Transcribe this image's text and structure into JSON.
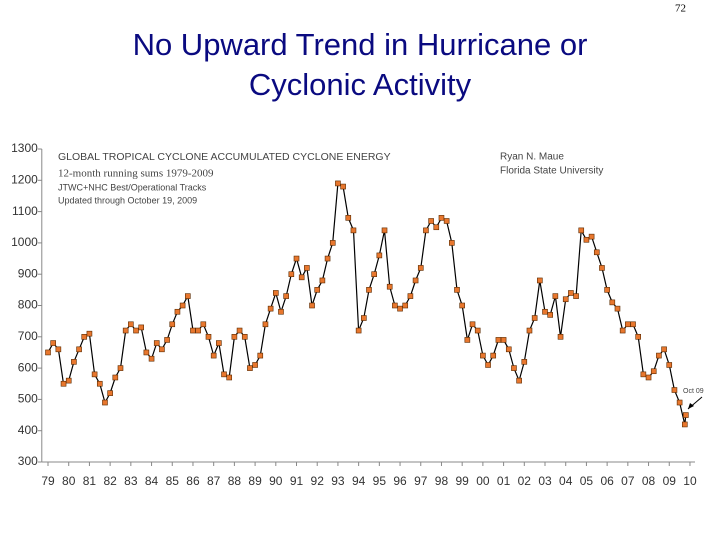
{
  "page_number": "72",
  "slide_title_lines": [
    "No Upward Trend in Hurricane or",
    "Cyclonic Activity"
  ],
  "chart_data": {
    "type": "line",
    "title": "GLOBAL TROPICAL CYCLONE ACCUMULATED CYCLONE ENERGY",
    "subtitle": "12-month running sums 1979-2009",
    "notes": [
      "JTWC+NHC Best/Operational Tracks",
      "Updated through October 19, 2009"
    ],
    "credits": [
      "Ryan N. Maue",
      "Florida State University"
    ],
    "annotation": "Oct 09",
    "x": [
      1979,
      1979.25,
      1979.5,
      1979.75,
      1980,
      1980.25,
      1980.5,
      1980.75,
      1981,
      1981.25,
      1981.5,
      1981.75,
      1982,
      1982.25,
      1982.5,
      1982.75,
      1983,
      1983.25,
      1983.5,
      1983.75,
      1984,
      1984.25,
      1984.5,
      1984.75,
      1985,
      1985.25,
      1985.5,
      1985.75,
      1986,
      1986.25,
      1986.5,
      1986.75,
      1987,
      1987.25,
      1987.5,
      1987.75,
      1988,
      1988.25,
      1988.5,
      1988.75,
      1989,
      1989.25,
      1989.5,
      1989.75,
      1990,
      1990.25,
      1990.5,
      1990.75,
      1991,
      1991.25,
      1991.5,
      1991.75,
      1992,
      1992.25,
      1992.5,
      1992.75,
      1993,
      1993.25,
      1993.5,
      1993.75,
      1994,
      1994.25,
      1994.5,
      1994.75,
      1995,
      1995.25,
      1995.5,
      1995.75,
      1996,
      1996.25,
      1996.5,
      1996.75,
      1997,
      1997.25,
      1997.5,
      1997.75,
      1998,
      1998.25,
      1998.5,
      1998.75,
      1999,
      1999.25,
      1999.5,
      1999.75,
      2000,
      2000.25,
      2000.5,
      2000.75,
      2001,
      2001.25,
      2001.5,
      2001.75,
      2002,
      2002.25,
      2002.5,
      2002.75,
      2003,
      2003.25,
      2003.5,
      2003.75,
      2004,
      2004.25,
      2004.5,
      2004.75,
      2005,
      2005.25,
      2005.5,
      2005.75,
      2006,
      2006.25,
      2006.5,
      2006.75,
      2007,
      2007.25,
      2007.5,
      2007.75,
      2008,
      2008.25,
      2008.5,
      2008.75,
      2009,
      2009.25,
      2009.5,
      2009.75,
      2009.8
    ],
    "series": [
      {
        "color": "#000000",
        "marker_color": "#e8772e",
        "marker_edge": "#5a2a00",
        "values": [
          650,
          680,
          660,
          550,
          560,
          620,
          660,
          700,
          710,
          580,
          550,
          490,
          520,
          570,
          600,
          720,
          740,
          720,
          730,
          650,
          630,
          680,
          660,
          690,
          740,
          780,
          800,
          830,
          720,
          720,
          740,
          700,
          640,
          680,
          580,
          570,
          700,
          720,
          700,
          600,
          610,
          640,
          740,
          790,
          840,
          780,
          830,
          900,
          950,
          890,
          920,
          800,
          850,
          880,
          950,
          1000,
          1190,
          1180,
          1080,
          1040,
          720,
          760,
          850,
          900,
          960,
          1040,
          860,
          800,
          790,
          800,
          830,
          880,
          920,
          1040,
          1070,
          1050,
          1080,
          1070,
          1000,
          850,
          800,
          690,
          740,
          720,
          640,
          610,
          640,
          690,
          690,
          660,
          600,
          560,
          620,
          720,
          760,
          880,
          780,
          770,
          830,
          700,
          820,
          840,
          830,
          1040,
          1010,
          1020,
          970,
          920,
          850,
          810,
          790,
          720,
          740,
          740,
          700,
          580,
          570,
          590,
          640,
          660,
          610,
          530,
          490,
          420,
          450
        ]
      }
    ],
    "xlim": [
      1978.7,
      2010.05
    ],
    "xticks": [
      {
        "value": 1979,
        "label": "79"
      },
      {
        "value": 1980,
        "label": "80"
      },
      {
        "value": 1981,
        "label": "81"
      },
      {
        "value": 1982,
        "label": "82"
      },
      {
        "value": 1983,
        "label": "83"
      },
      {
        "value": 1984,
        "label": "84"
      },
      {
        "value": 1985,
        "label": "85"
      },
      {
        "value": 1986,
        "label": "86"
      },
      {
        "value": 1987,
        "label": "87"
      },
      {
        "value": 1988,
        "label": "88"
      },
      {
        "value": 1989,
        "label": "89"
      },
      {
        "value": 1990,
        "label": "90"
      },
      {
        "value": 1991,
        "label": "91"
      },
      {
        "value": 1992,
        "label": "92"
      },
      {
        "value": 1993,
        "label": "93"
      },
      {
        "value": 1994,
        "label": "94"
      },
      {
        "value": 1995,
        "label": "95"
      },
      {
        "value": 1996,
        "label": "96"
      },
      {
        "value": 1997,
        "label": "97"
      },
      {
        "value": 1998,
        "label": "98"
      },
      {
        "value": 1999,
        "label": "99"
      },
      {
        "value": 2000,
        "label": "00"
      },
      {
        "value": 2001,
        "label": "01"
      },
      {
        "value": 2002,
        "label": "02"
      },
      {
        "value": 2003,
        "label": "03"
      },
      {
        "value": 2004,
        "label": "04"
      },
      {
        "value": 2005,
        "label": "05"
      },
      {
        "value": 2006,
        "label": "06"
      },
      {
        "value": 2007,
        "label": "07"
      },
      {
        "value": 2008,
        "label": "08"
      },
      {
        "value": 2009,
        "label": "09"
      },
      {
        "value": 2010,
        "label": "10"
      }
    ],
    "ylim": [
      300,
      1300
    ],
    "yticks": [
      300,
      400,
      500,
      600,
      700,
      800,
      900,
      1000,
      1100,
      1200,
      1300
    ],
    "grid": false
  }
}
